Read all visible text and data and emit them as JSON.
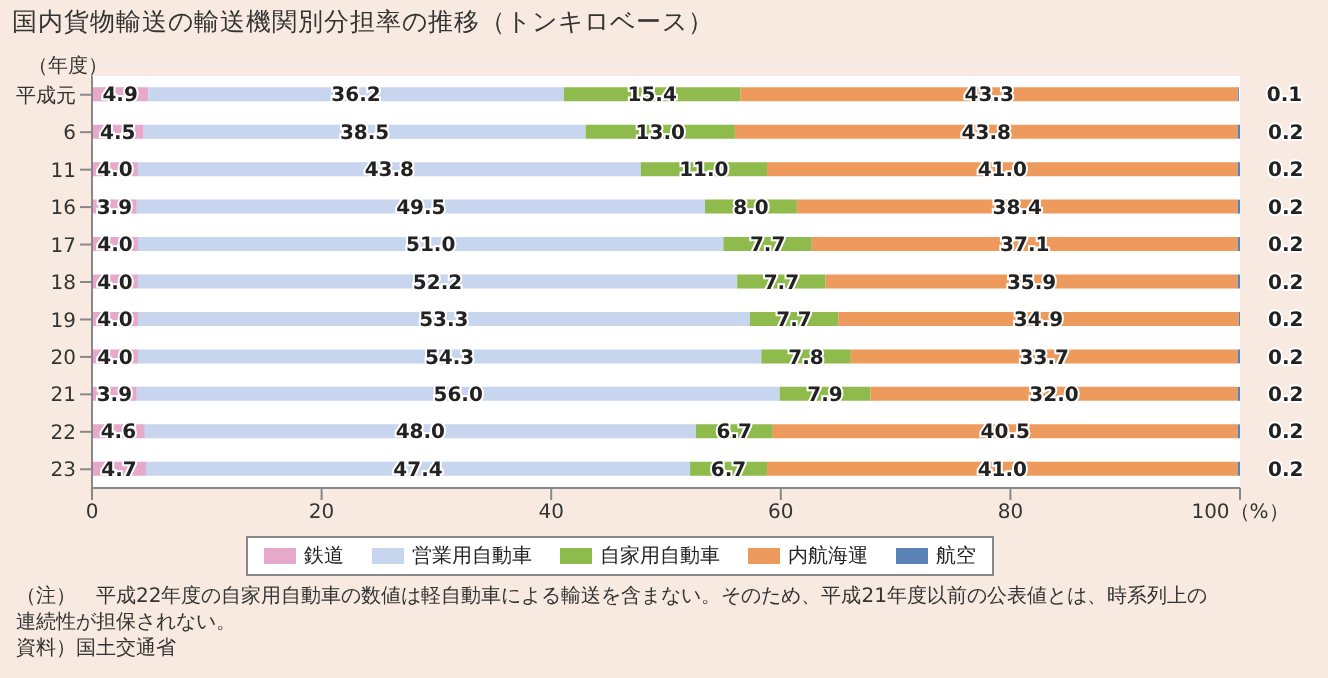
{
  "chart_data": {
    "type": "bar",
    "orientation": "horizontal",
    "stacked": true,
    "title": "国内貨物輸送の輸送機関別分担率の推移（トンキロベース）",
    "ylabel": "（年度）",
    "categories": [
      "平成元",
      "6",
      "11",
      "16",
      "17",
      "18",
      "19",
      "20",
      "21",
      "22",
      "23"
    ],
    "series": [
      {
        "name": "鉄道",
        "color": "#e6a9c9",
        "values": [
          4.9,
          4.5,
          4.0,
          3.9,
          4.0,
          4.0,
          4.0,
          4.0,
          3.9,
          4.6,
          4.7
        ],
        "value_labels": [
          "4.9",
          "4.5",
          "4.0",
          "3.9",
          "4.0",
          "4.0",
          "4.0",
          "4.0",
          "3.9",
          "4.6",
          "4.7"
        ]
      },
      {
        "name": "営業用自動車",
        "color": "#c8d5ee",
        "values": [
          36.2,
          38.5,
          43.8,
          49.5,
          51.0,
          52.2,
          53.3,
          54.3,
          56.0,
          48.0,
          47.4
        ],
        "value_labels": [
          "36.2",
          "38.5",
          "43.8",
          "49.5",
          "51.0",
          "52.2",
          "53.3",
          "54.3",
          "56.0",
          "48.0",
          "47.4"
        ]
      },
      {
        "name": "自家用自動車",
        "color": "#8fba4c",
        "values": [
          15.4,
          13.0,
          11.0,
          8.0,
          7.7,
          7.7,
          7.7,
          7.8,
          7.9,
          6.7,
          6.7
        ],
        "value_labels": [
          "15.4",
          "13.0",
          "11.0",
          "8.0",
          "7.7",
          "7.7",
          "7.7",
          "7.8",
          "7.9",
          "6.7",
          "6.7"
        ]
      },
      {
        "name": "内航海運",
        "color": "#ee9a5c",
        "values": [
          43.3,
          43.8,
          41.0,
          38.4,
          37.1,
          35.9,
          34.9,
          33.7,
          32.0,
          40.5,
          41.0
        ],
        "value_labels": [
          "43.3",
          "43.8",
          "41.0",
          "38.4",
          "37.1",
          "35.9",
          "34.9",
          "33.7",
          "32.0",
          "40.5",
          "41.0"
        ]
      },
      {
        "name": "航空",
        "color": "#5b82b5",
        "values": [
          0.1,
          0.2,
          0.2,
          0.2,
          0.2,
          0.2,
          0.2,
          0.2,
          0.2,
          0.2,
          0.2
        ],
        "value_labels": [
          "0.1",
          "0.2",
          "0.2",
          "0.2",
          "0.2",
          "0.2",
          "0.2",
          "0.2",
          "0.2",
          "0.2",
          "0.2"
        ]
      }
    ],
    "xlim": [
      0,
      100
    ],
    "xticks": [
      0,
      20,
      40,
      60,
      80,
      {
        "value": 100,
        "label": "100（%）"
      }
    ],
    "legend": "bottom",
    "annotations": [
      "（注）　平成22年度の自家用自動車の数値は軽自動車による輸送を含まない。そのため、平成21年度以前の公表値とは、時系列上の連続性が担保されない。",
      "資料）国土交通省"
    ]
  }
}
